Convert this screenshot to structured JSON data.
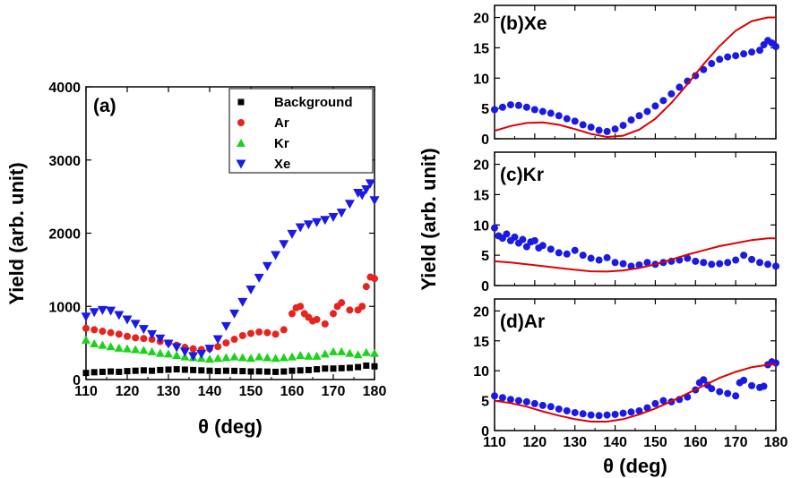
{
  "chart_data": [
    {
      "id": "a",
      "type": "scatter",
      "panel_label": "(a)",
      "xlabel": "θ (deg)",
      "ylabel": "Yield (arb. unit)",
      "xlim": [
        110,
        180
      ],
      "ylim": [
        0,
        4000
      ],
      "xticks": [
        "110",
        "120",
        "130",
        "140",
        "150",
        "160",
        "170",
        "180"
      ],
      "yticks": [
        "0",
        "1000",
        "2000",
        "3000",
        "4000"
      ],
      "legend_position": "top-right",
      "series": [
        {
          "name": "Background",
          "color": "#000000",
          "marker": "square",
          "x": [
            110,
            112,
            114,
            116,
            118,
            120,
            122,
            124,
            126,
            128,
            130,
            132,
            134,
            136,
            138,
            140,
            142,
            144,
            146,
            148,
            150,
            152,
            154,
            156,
            158,
            160,
            162,
            164,
            166,
            168,
            170,
            172,
            174,
            176,
            178,
            180
          ],
          "y": [
            90,
            100,
            105,
            110,
            105,
            115,
            120,
            125,
            120,
            130,
            135,
            140,
            135,
            130,
            125,
            120,
            115,
            120,
            118,
            115,
            110,
            112,
            108,
            105,
            110,
            120,
            125,
            130,
            140,
            150,
            150,
            155,
            160,
            170,
            190,
            180
          ]
        },
        {
          "name": "Ar",
          "color": "#e8231e",
          "marker": "circle",
          "x": [
            110,
            112,
            114,
            116,
            118,
            120,
            122,
            124,
            126,
            128,
            130,
            132,
            134,
            136,
            138,
            140,
            142,
            144,
            146,
            148,
            150,
            152,
            154,
            156,
            158,
            160,
            161,
            162,
            163,
            164,
            165,
            166,
            168,
            170,
            171,
            172,
            174,
            176,
            177,
            178,
            179,
            180
          ],
          "y": [
            700,
            680,
            660,
            640,
            620,
            590,
            570,
            560,
            550,
            520,
            500,
            470,
            440,
            420,
            410,
            420,
            450,
            500,
            550,
            600,
            630,
            650,
            640,
            620,
            680,
            900,
            980,
            1000,
            900,
            850,
            800,
            820,
            760,
            900,
            1000,
            1050,
            950,
            950,
            1000,
            1270,
            1400,
            1380
          ]
        },
        {
          "name": "Kr",
          "color": "#19d419",
          "marker": "triangle-up",
          "x": [
            110,
            112,
            114,
            116,
            118,
            120,
            122,
            124,
            126,
            128,
            130,
            132,
            134,
            136,
            138,
            140,
            142,
            144,
            146,
            148,
            150,
            152,
            154,
            156,
            158,
            160,
            162,
            164,
            166,
            168,
            170,
            172,
            174,
            176,
            178,
            180
          ],
          "y": [
            540,
            490,
            470,
            450,
            430,
            420,
            410,
            400,
            380,
            360,
            350,
            330,
            310,
            300,
            290,
            280,
            290,
            300,
            310,
            300,
            290,
            310,
            300,
            290,
            300,
            310,
            330,
            320,
            320,
            350,
            380,
            380,
            360,
            340,
            370,
            360
          ]
        },
        {
          "name": "Xe",
          "color": "#1a1ae6",
          "marker": "triangle-down",
          "x": [
            110,
            112,
            114,
            116,
            118,
            120,
            122,
            124,
            126,
            128,
            130,
            132,
            134,
            136,
            138,
            140,
            142,
            144,
            146,
            148,
            150,
            152,
            154,
            156,
            158,
            160,
            162,
            164,
            166,
            168,
            170,
            172,
            174,
            176,
            177,
            178,
            179,
            180
          ],
          "y": [
            860,
            920,
            950,
            940,
            880,
            820,
            760,
            690,
            620,
            560,
            490,
            440,
            380,
            320,
            350,
            420,
            550,
            730,
            900,
            1060,
            1230,
            1390,
            1550,
            1700,
            1850,
            1990,
            2080,
            2120,
            2150,
            2180,
            2220,
            2280,
            2400,
            2550,
            2520,
            2600,
            2680,
            2450
          ]
        }
      ]
    },
    {
      "id": "b",
      "type": "scatter",
      "panel_label": "(b)Xe",
      "xlim": [
        110,
        180
      ],
      "ylim": [
        0,
        22
      ],
      "yticks": [
        "0",
        "5",
        "10",
        "15",
        "20"
      ],
      "series": [
        {
          "kind": "points",
          "color": "#1a1ae6",
          "x": [
            110,
            112,
            114,
            116,
            118,
            120,
            122,
            124,
            126,
            128,
            130,
            132,
            134,
            136,
            138,
            140,
            142,
            144,
            146,
            148,
            150,
            152,
            154,
            156,
            158,
            160,
            162,
            164,
            166,
            168,
            170,
            172,
            174,
            176,
            177,
            178,
            179,
            180
          ],
          "y": [
            4.8,
            5.2,
            5.6,
            5.5,
            5.2,
            4.8,
            4.5,
            4.2,
            3.8,
            3.3,
            2.9,
            2.3,
            1.9,
            1.4,
            1.2,
            1.6,
            2.2,
            3.1,
            3.8,
            4.5,
            5.4,
            6.3,
            7.4,
            8.5,
            9.5,
            10.4,
            11.4,
            12.4,
            13.1,
            13.5,
            13.7,
            14.0,
            14.3,
            14.6,
            15.5,
            16.2,
            15.8,
            15.2
          ]
        },
        {
          "kind": "line",
          "color": "#e00000",
          "x": [
            110,
            114,
            118,
            122,
            126,
            130,
            134,
            138,
            142,
            146,
            150,
            154,
            158,
            162,
            166,
            170,
            174,
            178,
            180
          ],
          "y": [
            1.3,
            2.1,
            2.6,
            2.7,
            2.3,
            1.6,
            0.8,
            0.3,
            0.5,
            1.5,
            3.3,
            5.9,
            9.0,
            12.3,
            15.3,
            17.8,
            19.4,
            20.0,
            20.0
          ]
        }
      ]
    },
    {
      "id": "c",
      "type": "scatter",
      "panel_label": "(c)Kr",
      "ylabel": "Yield (arb. unit)",
      "xlim": [
        110,
        180
      ],
      "ylim": [
        0,
        22
      ],
      "yticks": [
        "0",
        "5",
        "10",
        "15",
        "20"
      ],
      "series": [
        {
          "kind": "points",
          "color": "#1a1ae6",
          "x": [
            110,
            111,
            112,
            113,
            114,
            115,
            116,
            117,
            118,
            119,
            120,
            121,
            122,
            124,
            126,
            128,
            130,
            132,
            134,
            136,
            138,
            140,
            142,
            144,
            146,
            148,
            150,
            152,
            154,
            156,
            158,
            160,
            162,
            164,
            166,
            168,
            170,
            172,
            174,
            176,
            178,
            180
          ],
          "y": [
            9.5,
            8.2,
            7.8,
            8.5,
            7.4,
            8.0,
            7.0,
            7.6,
            6.4,
            7.2,
            7.4,
            6.2,
            6.6,
            6.0,
            5.4,
            5.2,
            5.8,
            5.0,
            4.5,
            4.2,
            4.6,
            3.8,
            3.6,
            3.2,
            3.4,
            3.8,
            3.5,
            3.8,
            4.0,
            4.2,
            4.5,
            4.0,
            3.8,
            3.5,
            3.6,
            3.8,
            4.2,
            5.0,
            4.3,
            3.8,
            3.5,
            3.2
          ]
        },
        {
          "kind": "line",
          "color": "#e00000",
          "x": [
            110,
            114,
            118,
            122,
            126,
            130,
            134,
            138,
            142,
            146,
            150,
            154,
            158,
            162,
            166,
            170,
            174,
            178,
            180
          ],
          "y": [
            4.0,
            3.8,
            3.5,
            3.2,
            2.9,
            2.6,
            2.35,
            2.3,
            2.5,
            2.9,
            3.5,
            4.3,
            5.1,
            5.8,
            6.5,
            7.0,
            7.5,
            7.8,
            7.8
          ]
        }
      ]
    },
    {
      "id": "d",
      "type": "scatter",
      "panel_label": "(d)Ar",
      "xlabel": "θ (deg)",
      "xlim": [
        110,
        180
      ],
      "ylim": [
        0,
        22
      ],
      "xticks": [
        "110",
        "120",
        "130",
        "140",
        "150",
        "160",
        "170",
        "180"
      ],
      "yticks": [
        "0",
        "5",
        "10",
        "15",
        "20"
      ],
      "series": [
        {
          "kind": "points",
          "color": "#1a1ae6",
          "x": [
            110,
            112,
            114,
            116,
            118,
            120,
            122,
            124,
            126,
            128,
            130,
            132,
            134,
            136,
            138,
            140,
            142,
            144,
            146,
            148,
            150,
            152,
            154,
            156,
            158,
            160,
            161,
            162,
            163,
            164,
            166,
            168,
            170,
            171,
            172,
            174,
            176,
            177,
            178,
            179,
            180
          ],
          "y": [
            5.8,
            5.5,
            5.2,
            5.0,
            4.8,
            4.5,
            4.2,
            4.0,
            3.6,
            3.3,
            3.0,
            2.8,
            2.6,
            2.5,
            2.6,
            2.7,
            2.9,
            3.1,
            3.3,
            3.8,
            4.5,
            5.0,
            4.8,
            5.2,
            5.6,
            6.8,
            8.0,
            8.5,
            7.6,
            7.0,
            6.5,
            6.2,
            5.8,
            8.0,
            8.4,
            7.5,
            7.2,
            7.4,
            11.0,
            11.5,
            11.3
          ]
        },
        {
          "kind": "line",
          "color": "#e00000",
          "x": [
            110,
            114,
            118,
            122,
            126,
            130,
            134,
            138,
            142,
            146,
            150,
            154,
            158,
            162,
            166,
            170,
            174,
            178,
            180
          ],
          "y": [
            5.0,
            4.6,
            4.0,
            3.2,
            2.5,
            1.9,
            1.5,
            1.5,
            1.9,
            2.7,
            3.7,
            4.9,
            6.2,
            7.5,
            8.8,
            9.8,
            10.6,
            11.0,
            11.1
          ]
        }
      ]
    }
  ]
}
